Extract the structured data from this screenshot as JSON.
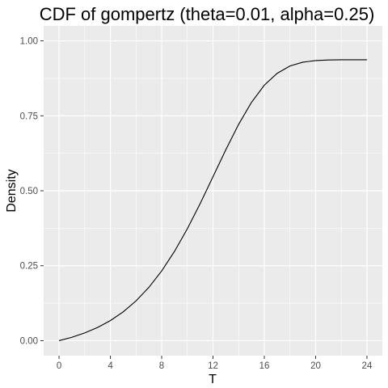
{
  "chart_data": {
    "type": "line",
    "title": "CDF of gompertz (theta=0.01, alpha=0.25)",
    "xlabel": "T",
    "ylabel": "Density",
    "xlim": [
      -1.2,
      25.2
    ],
    "ylim": [
      -0.05,
      1.05
    ],
    "x_ticks": [
      0,
      4,
      8,
      12,
      16,
      20,
      24
    ],
    "x_tick_labels": [
      "0",
      "4",
      "8",
      "12",
      "16",
      "20",
      "24"
    ],
    "y_ticks": [
      0,
      0.25,
      0.5,
      0.75,
      1
    ],
    "y_tick_labels": [
      "0.00",
      "0.25",
      "0.50",
      "0.75",
      "1.00"
    ],
    "grid": true,
    "series": [
      {
        "x": [
          0,
          1,
          2,
          3,
          4,
          5,
          6,
          7,
          8,
          9,
          10,
          11,
          12,
          13,
          14,
          15,
          16,
          17,
          18,
          19,
          20,
          21,
          22,
          23,
          24
        ],
        "y": [
          0,
          0.0113,
          0.0257,
          0.0439,
          0.067,
          0.0962,
          0.1326,
          0.1777,
          0.2326,
          0.2979,
          0.3733,
          0.4573,
          0.5468,
          0.6369,
          0.7216,
          0.7949,
          0.8521,
          0.8917,
          0.9161,
          0.9288,
          0.9343,
          0.9363,
          0.9369,
          0.937,
          0.937
        ]
      }
    ],
    "colors": {
      "panel": "#ebebeb",
      "grid_major": "#ffffff",
      "line": "#000000",
      "tick_text": "#4d4d4d",
      "tick_mark": "#333333"
    }
  }
}
